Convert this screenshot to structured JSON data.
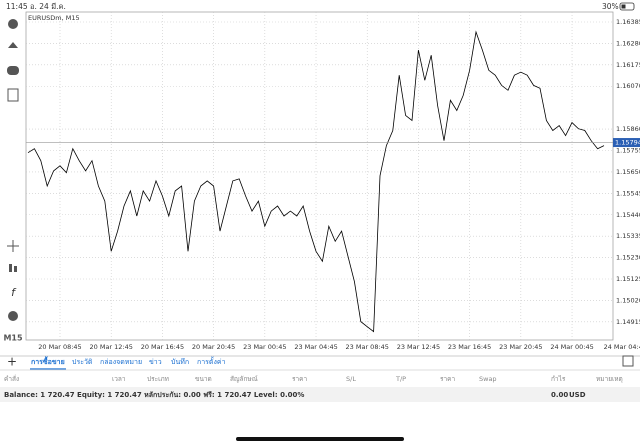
{
  "status_bar": {
    "time": "11:45",
    "date": "อ. 24 มี.ค.",
    "battery": "30%"
  },
  "chart_data": {
    "type": "line",
    "title": "EURUSDm, M15",
    "color": "#000000",
    "values": [
      1.15744,
      1.15764,
      1.15705,
      1.15581,
      1.15655,
      1.1568,
      1.15646,
      1.15764,
      1.15705,
      1.15655,
      1.15705,
      1.15581,
      1.15507,
      1.15261,
      1.1536,
      1.15483,
      1.15557,
      1.15434,
      1.15557,
      1.15507,
      1.15606,
      1.15532,
      1.15434,
      1.15557,
      1.15581,
      1.15261,
      1.15507,
      1.15581,
      1.15606,
      1.15581,
      1.1536,
      1.15483,
      1.15606,
      1.15616,
      1.15532,
      1.15458,
      1.15507,
      1.15384,
      1.15458,
      1.15483,
      1.15434,
      1.15458,
      1.15434,
      1.15483,
      1.1536,
      1.15261,
      1.15212,
      1.15384,
      1.1531,
      1.1536,
      1.15236,
      1.15113,
      1.14916,
      1.14891,
      1.14867,
      1.15631,
      1.15779,
      1.15853,
      1.16124,
      1.15927,
      1.15902,
      1.16247,
      1.16099,
      1.16222,
      1.15976,
      1.15803,
      1.16001,
      1.15951,
      1.16025,
      1.16148,
      1.16336,
      1.16247,
      1.16148,
      1.16124,
      1.16074,
      1.1605,
      1.16124,
      1.16139,
      1.16124,
      1.16074,
      1.1606,
      1.15902,
      1.15853,
      1.15877,
      1.15828,
      1.15892,
      1.15862,
      1.15853,
      1.15803,
      1.15764,
      1.15779
    ],
    "xlim": [
      0,
      91.4
    ],
    "xticks": [
      {
        "value": 5,
        "label": "20 Mar 08:45"
      },
      {
        "value": 13,
        "label": "20 Mar 12:45"
      },
      {
        "value": 21,
        "label": "20 Mar 16:45"
      },
      {
        "value": 29,
        "label": "20 Mar 20:45"
      },
      {
        "value": 37,
        "label": "23 Mar 00:45"
      },
      {
        "value": 45,
        "label": "23 Mar 04:45"
      },
      {
        "value": 53,
        "label": "23 Mar 08:45"
      },
      {
        "value": 61,
        "label": "23 Mar 12:45"
      },
      {
        "value": 69,
        "label": "23 Mar 16:45"
      },
      {
        "value": 77,
        "label": "23 Mar 20:45"
      },
      {
        "value": 85,
        "label": "24 Mar 00:45"
      },
      {
        "value": 93,
        "label": "24 Mar 04:4"
      }
    ],
    "ylim": [
      1.14826,
      1.16434
    ],
    "yticks": [
      1.16385,
      {
        "value": 1.1628,
        "label": "1.16280"
      },
      1.16175,
      {
        "value": 1.1607,
        "label": "1.16070"
      },
      {
        "value": 1.1586,
        "label": "1.15860"
      },
      1.15755,
      {
        "value": 1.1565,
        "label": "1.15650"
      },
      1.15545,
      {
        "value": 1.1544,
        "label": "1.15440"
      },
      1.15335,
      {
        "value": 1.1523,
        "label": "1.15230"
      },
      1.15125,
      {
        "value": 1.1502,
        "label": "1.15020"
      },
      1.14915
    ],
    "grid": true,
    "current_price": 1.15794
  },
  "side_label": "M15",
  "tabs": [
    "การซื้อขาย",
    "ประวัติ",
    "กล่องจดหมาย",
    "ข่าว",
    "บันทึก",
    "การตั้งค่า"
  ],
  "columns": [
    "คำสั่ง",
    "เวลา",
    "ประเภท",
    "ขนาด",
    "สัญลักษณ์",
    "ราคา",
    "S/L",
    "T/P",
    "ราคา",
    "Swap",
    "กำไร",
    "หมายเหตุ"
  ],
  "account": {
    "summary": "Balance: 1 720.47 Equity: 1 720.47 หลักประกัน: 0.00 ฟรี: 1 720.47 Level: 0.00%",
    "profit": "0.00",
    "currency": "USD"
  }
}
